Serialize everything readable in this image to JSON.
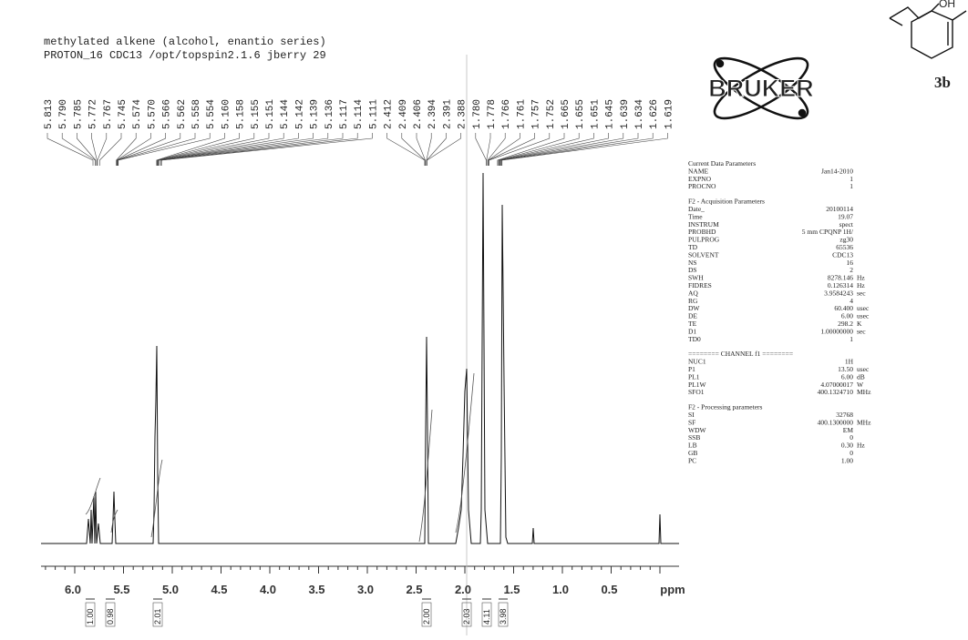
{
  "header": {
    "line1": "methylated alkene (alcohol, enantio series)",
    "line2": "PROTON_16 CDC13 /opt/topspin2.1.6 jberry 29"
  },
  "peak_labels": [
    "5.813",
    "5.790",
    "5.785",
    "5.772",
    "5.767",
    "5.745",
    "5.574",
    "5.570",
    "5.566",
    "5.562",
    "5.558",
    "5.554",
    "5.160",
    "5.158",
    "5.155",
    "5.151",
    "5.144",
    "5.142",
    "5.139",
    "5.136",
    "5.117",
    "5.114",
    "5.111",
    "2.412",
    "2.409",
    "2.406",
    "2.394",
    "2.391",
    "2.388",
    "1.780",
    "1.778",
    "1.766",
    "1.761",
    "1.757",
    "1.752",
    "1.665",
    "1.655",
    "1.651",
    "1.645",
    "1.639",
    "1.634",
    "1.626",
    "1.619"
  ],
  "axis": {
    "ticks": [
      "6.0",
      "5.5",
      "5.0",
      "4.5",
      "4.0",
      "3.5",
      "3.0",
      "2.5",
      "2.0",
      "1.5",
      "1.0",
      "0.5"
    ],
    "unit": "ppm"
  },
  "integrals": [
    "1.00",
    "0.98",
    "2.01",
    "2.00",
    "2.03",
    "4.11",
    "3.98"
  ],
  "logo": "BRUKER",
  "structure": {
    "hydroxyl": "OH",
    "compound": "3b"
  },
  "parameters": [
    {
      "title": "Current Data Parameters",
      "rows": [
        [
          "NAME",
          "Jan14-2010"
        ],
        [
          "EXPNO",
          "1"
        ],
        [
          "PROCNO",
          "1"
        ]
      ]
    },
    {
      "title": "F2 - Acquisition Parameters",
      "rows": [
        [
          "Date_",
          "20100114"
        ],
        [
          "Time",
          "19.07"
        ],
        [
          "INSTRUM",
          "spect"
        ],
        [
          "PROBHD",
          "5 mm CPQNP 1H/"
        ],
        [
          "PULPROG",
          "zg30"
        ],
        [
          "TD",
          "65536"
        ],
        [
          "SOLVENT",
          "CDC13"
        ],
        [
          "NS",
          "16"
        ],
        [
          "DS",
          "2"
        ],
        [
          "SWH",
          "8278.146",
          "Hz"
        ],
        [
          "FIDRES",
          "0.126314",
          "Hz"
        ],
        [
          "AQ",
          "3.9584243",
          "sec"
        ],
        [
          "RG",
          "4"
        ],
        [
          "DW",
          "60.400",
          "usec"
        ],
        [
          "DE",
          "6.00",
          "usec"
        ],
        [
          "TE",
          "298.2",
          "K"
        ],
        [
          "D1",
          "1.00000000",
          "sec"
        ],
        [
          "TD0",
          "1"
        ]
      ]
    },
    {
      "title": "======== CHANNEL f1 ========",
      "rows": [
        [
          "NUC1",
          "1H"
        ],
        [
          "P1",
          "13.50",
          "usec"
        ],
        [
          "PL1",
          "6.00",
          "dB"
        ],
        [
          "PL1W",
          "4.07000017",
          "W"
        ],
        [
          "SFO1",
          "400.1324710",
          "MHz"
        ]
      ]
    },
    {
      "title": "F2 - Processing parameters",
      "rows": [
        [
          "SI",
          "32768"
        ],
        [
          "SF",
          "400.1300000",
          "MHz"
        ],
        [
          "WDW",
          "EM"
        ],
        [
          "SSB",
          "0"
        ],
        [
          "LB",
          "0.30",
          "Hz"
        ],
        [
          "GB",
          "0"
        ],
        [
          "PC",
          "1.00"
        ]
      ]
    }
  ]
}
